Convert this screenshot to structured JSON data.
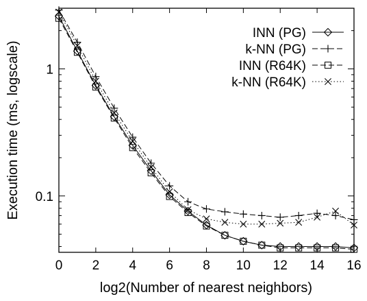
{
  "chart_data": {
    "type": "line",
    "title": "",
    "xlabel": "log2(Number of nearest neighbors)",
    "ylabel": "Execution time (ms, logscale)",
    "xlim": [
      0,
      16
    ],
    "ylim": [
      0.036,
      3.0
    ],
    "yscale": "log",
    "grid": false,
    "legend_position": "top-right",
    "x_ticks": [
      0,
      2,
      4,
      6,
      8,
      10,
      12,
      14,
      16
    ],
    "x_tick_labels": [
      "0",
      "2",
      "4",
      "6",
      "8",
      "10",
      "12",
      "14",
      "16"
    ],
    "y_ticks": [
      0.1,
      1
    ],
    "y_tick_labels": [
      "0.1",
      "1"
    ],
    "x": [
      0,
      1,
      2,
      3,
      4,
      5,
      6,
      7,
      8,
      9,
      10,
      11,
      12,
      13,
      14,
      15,
      16
    ],
    "series": [
      {
        "name": "INN (PG)",
        "marker": "diamond",
        "line": "solid",
        "values": [
          2.6,
          1.38,
          0.74,
          0.42,
          0.25,
          0.158,
          0.102,
          0.076,
          0.059,
          0.049,
          0.044,
          0.041,
          0.04,
          0.04,
          0.04,
          0.04,
          0.039
        ]
      },
      {
        "name": "k-NN (PG)",
        "marker": "plus",
        "line": "dashed",
        "values": [
          2.9,
          1.62,
          0.87,
          0.49,
          0.29,
          0.181,
          0.12,
          0.09,
          0.079,
          0.075,
          0.072,
          0.07,
          0.068,
          0.07,
          0.073,
          0.07,
          0.065
        ]
      },
      {
        "name": "INN (R64K)",
        "marker": "square",
        "line": "dashed",
        "values": [
          2.5,
          1.35,
          0.72,
          0.41,
          0.24,
          0.152,
          0.099,
          0.074,
          0.058,
          0.049,
          0.044,
          0.041,
          0.039,
          0.039,
          0.039,
          0.039,
          0.038
        ]
      },
      {
        "name": "k-NN (R64K)",
        "marker": "x",
        "line": "dotted",
        "values": [
          2.8,
          1.52,
          0.8,
          0.45,
          0.27,
          0.168,
          0.108,
          0.078,
          0.066,
          0.062,
          0.06,
          0.06,
          0.061,
          0.062,
          0.068,
          0.076,
          0.059
        ]
      }
    ]
  }
}
